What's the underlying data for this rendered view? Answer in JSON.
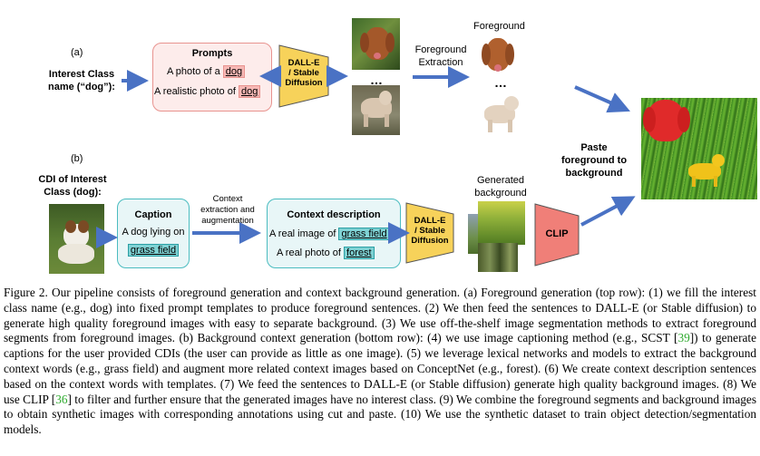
{
  "figure": {
    "row_a": {
      "marker": "(a)",
      "interest_label_1": "Interest Class",
      "interest_label_2": "name (“dog”):",
      "prompts_title": "Prompts",
      "prompt1_pre": "A photo of a",
      "prompt1_chip": "dog",
      "prompt2_pre": "A realistic photo of",
      "prompt2_chip": "dog",
      "generator_1": "DALL-E",
      "generator_2": "/ Stable",
      "generator_3": "Diffusion",
      "ellipsis": "…",
      "extraction_1": "Foreground",
      "extraction_2": "Extraction",
      "foreground_label": "Foreground",
      "ellipsis2": "…"
    },
    "row_b": {
      "marker": "(b)",
      "cdi_label_1": "CDI of Interest",
      "cdi_label_2": "Class (dog):",
      "caption_title": "Caption",
      "caption_line": "A dog lying on",
      "caption_chip": "grass field",
      "context_1": "Context",
      "context_2": "extraction and",
      "context_3": "augmentation",
      "context_title": "Context description",
      "ctx1_pre": "A real image of",
      "ctx1_chip": "grass field",
      "ctx2_pre": "A real photo of",
      "ctx2_chip": "forest",
      "generator_1": "DALL-E",
      "generator_2": "/ Stable",
      "generator_3": "Diffusion",
      "generated_1": "Generated",
      "generated_2": "background",
      "clip_label": "CLIP"
    },
    "paste_1": "Paste",
    "paste_2": "foreground to",
    "paste_3": "background"
  },
  "caption": {
    "part1": "Figure 2. Our pipeline consists of foreground generation and context background generation. (a) Foreground generation (top row): (1) we fill the interest class name (e.g., dog) into fixed prompt templates to produce foreground sentences. (2) We then feed the sentences to DALL-E (or Stable diffusion) to generate high quality foreground images with easy to separate background. (3) We use off-the-shelf image segmentation methods to extract foreground segments from foreground images. (b) Background context generation (bottom row): (4) we use image captioning method (e.g., SCST [",
    "cite1": "39",
    "part2": "]) to generate captions for the user provided CDIs (the user can provide as little as one image). (5) we leverage lexical networks and models to extract the background context words (e.g., grass field) and augment more related context images based on ConceptNet (e.g., forest). (6) We create context description sentences based on the context words with templates. (7) We feed the sentences to DALL-E (or Stable diffusion) generate high quality background images. (8) We use CLIP [",
    "cite2": "36",
    "part3": "] to filter and further ensure that the generated images have no interest class. (9) We combine the foreground segments and background images to obtain synthetic images with corresponding annotations using cut and paste. (10) We use the synthetic dataset to train object detection/segmentation models."
  },
  "colors": {
    "arrow": "#4a72c4",
    "generator_fill": "#f7d25a",
    "clip_fill": "#f07f78",
    "prompt_border": "#e8938f",
    "caption_border": "#4bbcc0",
    "citation": "#2eaa2e"
  }
}
